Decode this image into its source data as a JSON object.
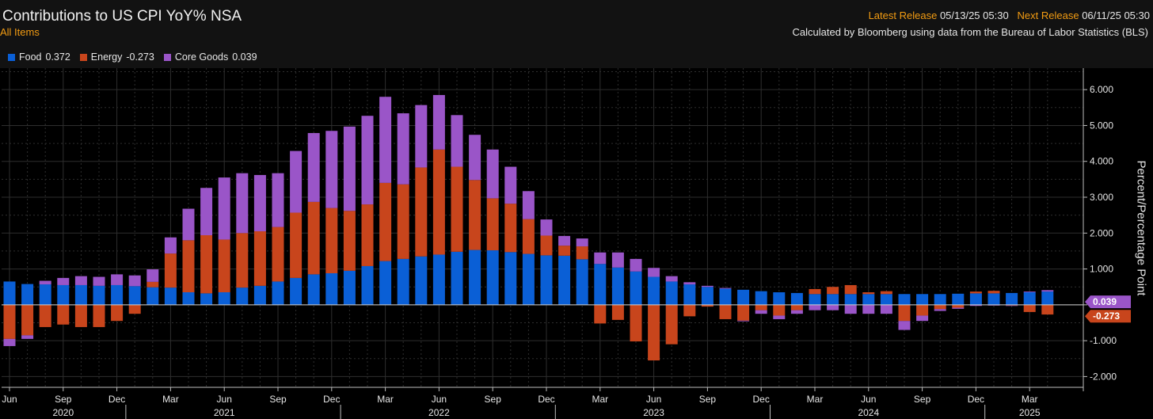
{
  "header": {
    "title": "Contributions to US CPI YoY% NSA",
    "subtitle": "All Items",
    "latest_release_label": "Latest Release",
    "latest_release_value": "05/13/25 05:30",
    "next_release_label": "Next Release",
    "next_release_value": "06/11/25 05:30",
    "source": "Calculated by Bloomberg using data from the Bureau of Labor Statistics (BLS)"
  },
  "colors": {
    "food": "#0a5fd6",
    "energy": "#c8451c",
    "core_goods": "#9a55c8",
    "background": "#000000",
    "grid": "#2e2e2e"
  },
  "legend": [
    {
      "label": "Food",
      "value": "0.372",
      "color": "#0a5fd6"
    },
    {
      "label": "Energy",
      "value": "-0.273",
      "color": "#c8451c"
    },
    {
      "label": "Core Goods",
      "value": "0.039",
      "color": "#9a55c8"
    }
  ],
  "chart_data": {
    "type": "bar",
    "stacked": true,
    "ylabel": "Percent/Percentage Point",
    "ylim": [
      -2.3,
      6.6
    ],
    "yticks": [
      6,
      5,
      4,
      3,
      2,
      1,
      0,
      -1,
      -2
    ],
    "ytick_labels": [
      "6.000",
      "5.000",
      "4.000",
      "3.000",
      "2.000",
      "1.000",
      "0.000",
      "-1.000",
      "-2.000"
    ],
    "grid": true,
    "legend_position": "top-left",
    "categories": [
      "2020-06",
      "2020-07",
      "2020-08",
      "2020-09",
      "2020-10",
      "2020-11",
      "2020-12",
      "2021-01",
      "2021-02",
      "2021-03",
      "2021-04",
      "2021-05",
      "2021-06",
      "2021-07",
      "2021-08",
      "2021-09",
      "2021-10",
      "2021-11",
      "2021-12",
      "2022-01",
      "2022-02",
      "2022-03",
      "2022-04",
      "2022-05",
      "2022-06",
      "2022-07",
      "2022-08",
      "2022-09",
      "2022-10",
      "2022-11",
      "2022-12",
      "2023-01",
      "2023-02",
      "2023-03",
      "2023-04",
      "2023-05",
      "2023-06",
      "2023-07",
      "2023-08",
      "2023-09",
      "2023-10",
      "2023-11",
      "2023-12",
      "2024-01",
      "2024-02",
      "2024-03",
      "2024-04",
      "2024-05",
      "2024-06",
      "2024-07",
      "2024-08",
      "2024-09",
      "2024-10",
      "2024-11",
      "2024-12",
      "2025-01",
      "2025-02",
      "2025-03",
      "2025-04"
    ],
    "series": [
      {
        "name": "Food",
        "values": [
          0.65,
          0.58,
          0.57,
          0.55,
          0.55,
          0.53,
          0.55,
          0.52,
          0.49,
          0.48,
          0.35,
          0.32,
          0.35,
          0.48,
          0.53,
          0.65,
          0.75,
          0.85,
          0.88,
          0.95,
          1.08,
          1.22,
          1.28,
          1.35,
          1.4,
          1.48,
          1.53,
          1.52,
          1.47,
          1.42,
          1.38,
          1.37,
          1.27,
          1.14,
          1.04,
          0.93,
          0.78,
          0.65,
          0.57,
          0.5,
          0.45,
          0.42,
          0.38,
          0.35,
          0.33,
          0.3,
          0.3,
          0.3,
          0.3,
          0.3,
          0.3,
          0.3,
          0.3,
          0.31,
          0.32,
          0.32,
          0.33,
          0.35,
          0.37
        ]
      },
      {
        "name": "Energy",
        "values": [
          -0.95,
          -0.85,
          -0.62,
          -0.55,
          -0.62,
          -0.62,
          -0.45,
          -0.25,
          0.15,
          0.95,
          1.45,
          1.62,
          1.47,
          1.52,
          1.52,
          1.52,
          1.82,
          2.02,
          1.82,
          1.67,
          1.72,
          2.18,
          2.08,
          2.48,
          2.93,
          2.37,
          1.95,
          1.45,
          1.35,
          0.97,
          0.55,
          0.28,
          0.36,
          -0.52,
          -0.42,
          -1.02,
          -1.55,
          -1.1,
          -0.32,
          -0.05,
          -0.4,
          -0.44,
          -0.15,
          -0.3,
          -0.15,
          0.14,
          0.2,
          0.25,
          0.05,
          0.08,
          -0.45,
          -0.3,
          -0.12,
          -0.08,
          0.05,
          0.07,
          -0.02,
          -0.2,
          -0.27
        ]
      },
      {
        "name": "Core Goods",
        "values": [
          -0.2,
          -0.1,
          0.1,
          0.2,
          0.25,
          0.25,
          0.3,
          0.3,
          0.35,
          0.45,
          0.88,
          1.32,
          1.73,
          1.67,
          1.57,
          1.5,
          1.72,
          1.92,
          2.15,
          2.35,
          2.47,
          2.4,
          1.98,
          1.74,
          1.52,
          1.44,
          1.26,
          1.36,
          1.03,
          0.78,
          0.45,
          0.27,
          0.22,
          0.32,
          0.42,
          0.35,
          0.25,
          0.15,
          0.06,
          0.03,
          0.02,
          -0.02,
          -0.1,
          -0.1,
          -0.1,
          -0.15,
          -0.15,
          -0.25,
          -0.25,
          -0.25,
          -0.25,
          -0.15,
          -0.05,
          -0.03,
          -0.03,
          -0.02,
          -0.01,
          0.02,
          0.04
        ]
      }
    ],
    "x_month_labels": [
      {
        "index": 0,
        "label": "Jun"
      },
      {
        "index": 3,
        "label": "Sep"
      },
      {
        "index": 6,
        "label": "Dec"
      },
      {
        "index": 9,
        "label": "Mar"
      },
      {
        "index": 12,
        "label": "Jun"
      },
      {
        "index": 15,
        "label": "Sep"
      },
      {
        "index": 18,
        "label": "Dec"
      },
      {
        "index": 21,
        "label": "Mar"
      },
      {
        "index": 24,
        "label": "Jun"
      },
      {
        "index": 27,
        "label": "Sep"
      },
      {
        "index": 30,
        "label": "Dec"
      },
      {
        "index": 33,
        "label": "Mar"
      },
      {
        "index": 36,
        "label": "Jun"
      },
      {
        "index": 39,
        "label": "Sep"
      },
      {
        "index": 42,
        "label": "Dec"
      },
      {
        "index": 45,
        "label": "Mar"
      },
      {
        "index": 48,
        "label": "Jun"
      },
      {
        "index": 51,
        "label": "Sep"
      },
      {
        "index": 54,
        "label": "Dec"
      },
      {
        "index": 57,
        "label": "Mar"
      }
    ],
    "x_year_labels": [
      {
        "index": 3,
        "label": "2020"
      },
      {
        "index": 12,
        "label": "2021"
      },
      {
        "index": 24,
        "label": "2022"
      },
      {
        "index": 36,
        "label": "2023"
      },
      {
        "index": 48,
        "label": "2024"
      },
      {
        "index": 57,
        "label": "2025"
      }
    ],
    "value_tags": [
      {
        "value": 0.039,
        "label": "0.039",
        "color": "#9a55c8"
      },
      {
        "value": -0.273,
        "label": "-0.273",
        "color": "#c8451c"
      }
    ]
  }
}
